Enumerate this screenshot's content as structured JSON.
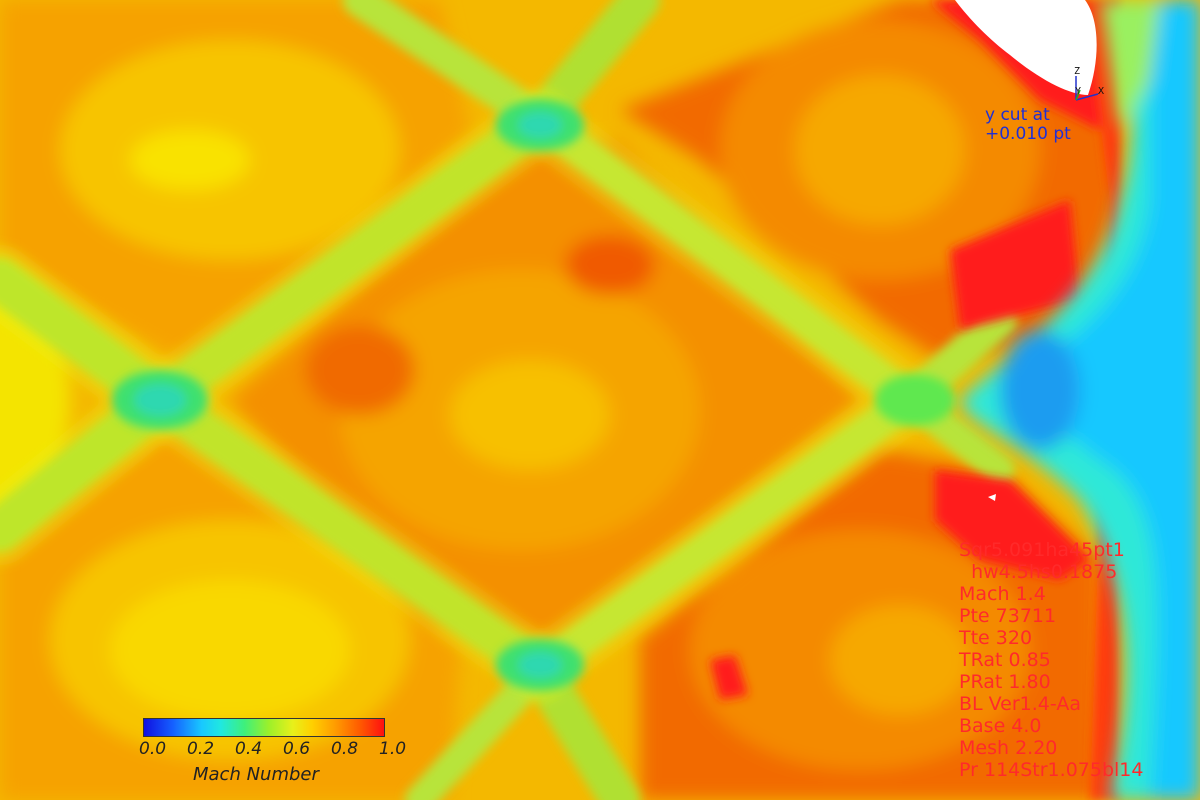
{
  "cut_label": {
    "line1": "y cut at",
    "line2": "+0.010 pt"
  },
  "parameters": [
    "Sqr5.091ha45pt1",
    "  hw4.5hs0.1875",
    "Mach 1.4",
    "Pte 73711",
    "Tte 320",
    "TRat 0.85",
    "PRat 1.80",
    "BL Ver1.4-Aa",
    "Base 4.0",
    "Mesh 2.20",
    "Pr 114Str1.075bl14"
  ],
  "legend": {
    "title": "Mach Number",
    "ticks": [
      "0.0",
      "0.2",
      "0.4",
      "0.6",
      "0.8",
      "1.0"
    ],
    "colors": [
      "#1010e0",
      "#19c8ff",
      "#3ff07a",
      "#e8f01a",
      "#ff9a00",
      "#ff1010"
    ]
  },
  "axes": {
    "z": "Z",
    "y": "Y",
    "x": "X"
  }
}
